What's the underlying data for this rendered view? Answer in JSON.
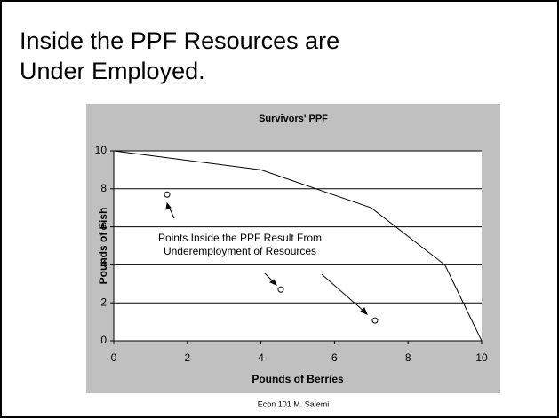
{
  "slide_title": [
    "Inside the PPF Resources are",
    "Under Employed."
  ],
  "footer": "Econ 101 M. Salemi",
  "chart_data": {
    "type": "line",
    "title": "Survivors' PPF",
    "xlabel": "Pounds of Berries",
    "ylabel": "Pounds of Fish",
    "xlim": [
      0,
      10
    ],
    "xticks": [
      0,
      2,
      4,
      6,
      8,
      10
    ],
    "ylim": [
      0,
      10
    ],
    "yticks": [
      0,
      2,
      4,
      6,
      8,
      10
    ],
    "grid": true,
    "series": [
      {
        "type": "line",
        "color": "#000000",
        "x": [
          0,
          4,
          7,
          9,
          10
        ],
        "values": [
          10,
          9,
          7,
          4,
          0
        ]
      },
      {
        "type": "scatter",
        "color": "#000000",
        "x": [
          1.45,
          4.54,
          7.1
        ],
        "values": [
          7.7,
          2.7,
          1.07
        ]
      }
    ],
    "annotation": [
      "Points Inside the PPF Result From",
      "Underemployment of Resources"
    ]
  }
}
